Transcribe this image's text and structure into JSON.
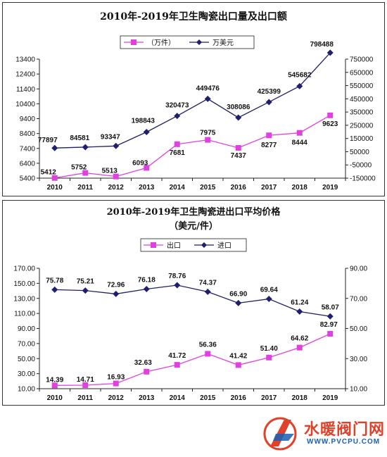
{
  "colors": {
    "export": "#e040e0",
    "import": "#1f1f6b",
    "axis": "#222222",
    "watermark_red": "#e0412a",
    "watermark_blue": "#1b5fb0"
  },
  "watermark": {
    "name": "水暖阀门网",
    "url": "WWW.PVCPU.COM"
  },
  "chart_data": [
    {
      "type": "line",
      "title": "2010年-2019年卫生陶瓷出口量及出口额",
      "categories": [
        "2010",
        "2011",
        "2012",
        "2013",
        "2014",
        "2015",
        "2016",
        "2017",
        "2018",
        "2019"
      ],
      "series": [
        {
          "name": "（万件）",
          "axis": "left",
          "marker": "square",
          "color": "#e040e0",
          "values": [
            5412,
            5752,
            5513,
            6093,
            7681,
            7975,
            7437,
            8277,
            8444,
            9623
          ],
          "labels": [
            "5412",
            "5752",
            "5513",
            "6093",
            "7681",
            "7975",
            "7437",
            "8277",
            "8444",
            "9623"
          ]
        },
        {
          "name": "万美元",
          "axis": "right",
          "marker": "diamond",
          "color": "#1f1f6b",
          "values": [
            77897,
            84581,
            93347,
            198843,
            320473,
            449476,
            308086,
            425399,
            545682,
            798488
          ],
          "labels": [
            "77897",
            "84581",
            "93347",
            "198843",
            "320473",
            "449476",
            "308086",
            "425399",
            "545682",
            "798488"
          ]
        }
      ],
      "yleft": {
        "min": 5400,
        "max": 13400,
        "ticks": [
          "5400",
          "6400",
          "7400",
          "8400",
          "9400",
          "10400",
          "11400",
          "12400",
          "13400"
        ]
      },
      "yright": {
        "min": -150000,
        "max": 750000,
        "ticks": [
          "-150000",
          "-50000",
          "50000",
          "150000",
          "250000",
          "350000",
          "450000",
          "550000",
          "650000",
          "750000"
        ]
      },
      "legend_position": "top-center",
      "grid": false
    },
    {
      "type": "line",
      "title": "2010年-2019年卫生陶瓷进出口平均价格",
      "subtitle": "（美元/件）",
      "categories": [
        "2010",
        "2011",
        "2012",
        "2013",
        "2014",
        "2015",
        "2016",
        "2017",
        "2018",
        "2019"
      ],
      "series": [
        {
          "name": "出口",
          "axis": "left",
          "marker": "square",
          "color": "#e040e0",
          "values": [
            14.39,
            14.71,
            16.93,
            32.63,
            41.72,
            56.36,
            41.42,
            51.4,
            64.62,
            82.97
          ],
          "labels": [
            "14.39",
            "14.71",
            "16.93",
            "32.63",
            "41.72",
            "56.36",
            "41.42",
            "51.40",
            "64.62",
            "82.97"
          ]
        },
        {
          "name": "进口",
          "axis": "right",
          "marker": "diamond",
          "color": "#1f1f6b",
          "values": [
            75.78,
            75.21,
            72.96,
            76.18,
            78.76,
            74.37,
            66.9,
            69.64,
            61.24,
            58.07
          ],
          "labels": [
            "75.78",
            "75.21",
            "72.96",
            "76.18",
            "78.76",
            "74.37",
            "66.90",
            "69.64",
            "61.24",
            "58.07"
          ]
        }
      ],
      "yleft": {
        "min": 10,
        "max": 170,
        "ticks": [
          "10.00",
          "30.00",
          "50.00",
          "70.00",
          "90.00",
          "110.00",
          "130.00",
          "150.00",
          "170.00"
        ]
      },
      "yright": {
        "min": 10,
        "max": 90,
        "ticks": [
          "10.00",
          "30.00",
          "50.00",
          "70.00",
          "90.00"
        ]
      },
      "legend_position": "top-center",
      "grid": false
    }
  ]
}
